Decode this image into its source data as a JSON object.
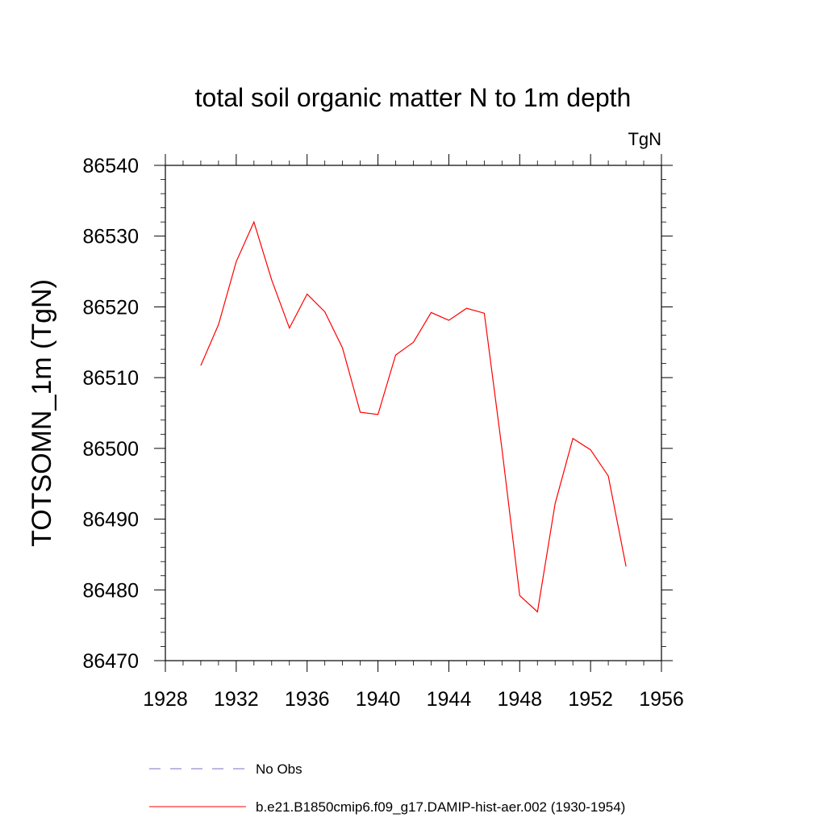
{
  "chart_data": {
    "type": "line",
    "title": "total soil organic matter N to 1m depth",
    "units_label": "TgN",
    "xlabel": "",
    "ylabel": "TOTSOMN_1m  (TgN)",
    "xlim": [
      1928,
      1956
    ],
    "ylim": [
      86470,
      86540
    ],
    "x_ticks": [
      1928,
      1932,
      1936,
      1940,
      1944,
      1948,
      1952,
      1956
    ],
    "y_ticks": [
      86470,
      86480,
      86490,
      86500,
      86510,
      86520,
      86530,
      86540
    ],
    "grid": false,
    "legend_placement": "bottom",
    "series": [
      {
        "name": "b.e21.B1850cmip6.f09_g17.DAMIP-hist-aer.002 (1930-1954)",
        "color": "#ff0000",
        "style": "solid",
        "x": [
          1930,
          1931,
          1932,
          1933,
          1934,
          1935,
          1936,
          1937,
          1938,
          1939,
          1940,
          1941,
          1942,
          1943,
          1944,
          1945,
          1946,
          1947,
          1948,
          1949,
          1950,
          1951,
          1952,
          1953,
          1954
        ],
        "y": [
          86511.7,
          86517.5,
          86526.4,
          86532.0,
          86523.8,
          86517.0,
          86521.8,
          86519.3,
          86514.2,
          86505.1,
          86504.8,
          86513.2,
          86515.0,
          86519.2,
          86518.1,
          86519.8,
          86519.1,
          86499.9,
          86479.2,
          86476.9,
          86492.2,
          86501.4,
          86499.8,
          86496.1,
          86483.3
        ]
      }
    ],
    "legend": [
      {
        "label": "No Obs",
        "color": "#7b6fc6",
        "style": "dashed"
      },
      {
        "label": "b.e21.B1850cmip6.f09_g17.DAMIP-hist-aer.002 (1930-1954)",
        "color": "#ff0000",
        "style": "solid"
      }
    ]
  }
}
